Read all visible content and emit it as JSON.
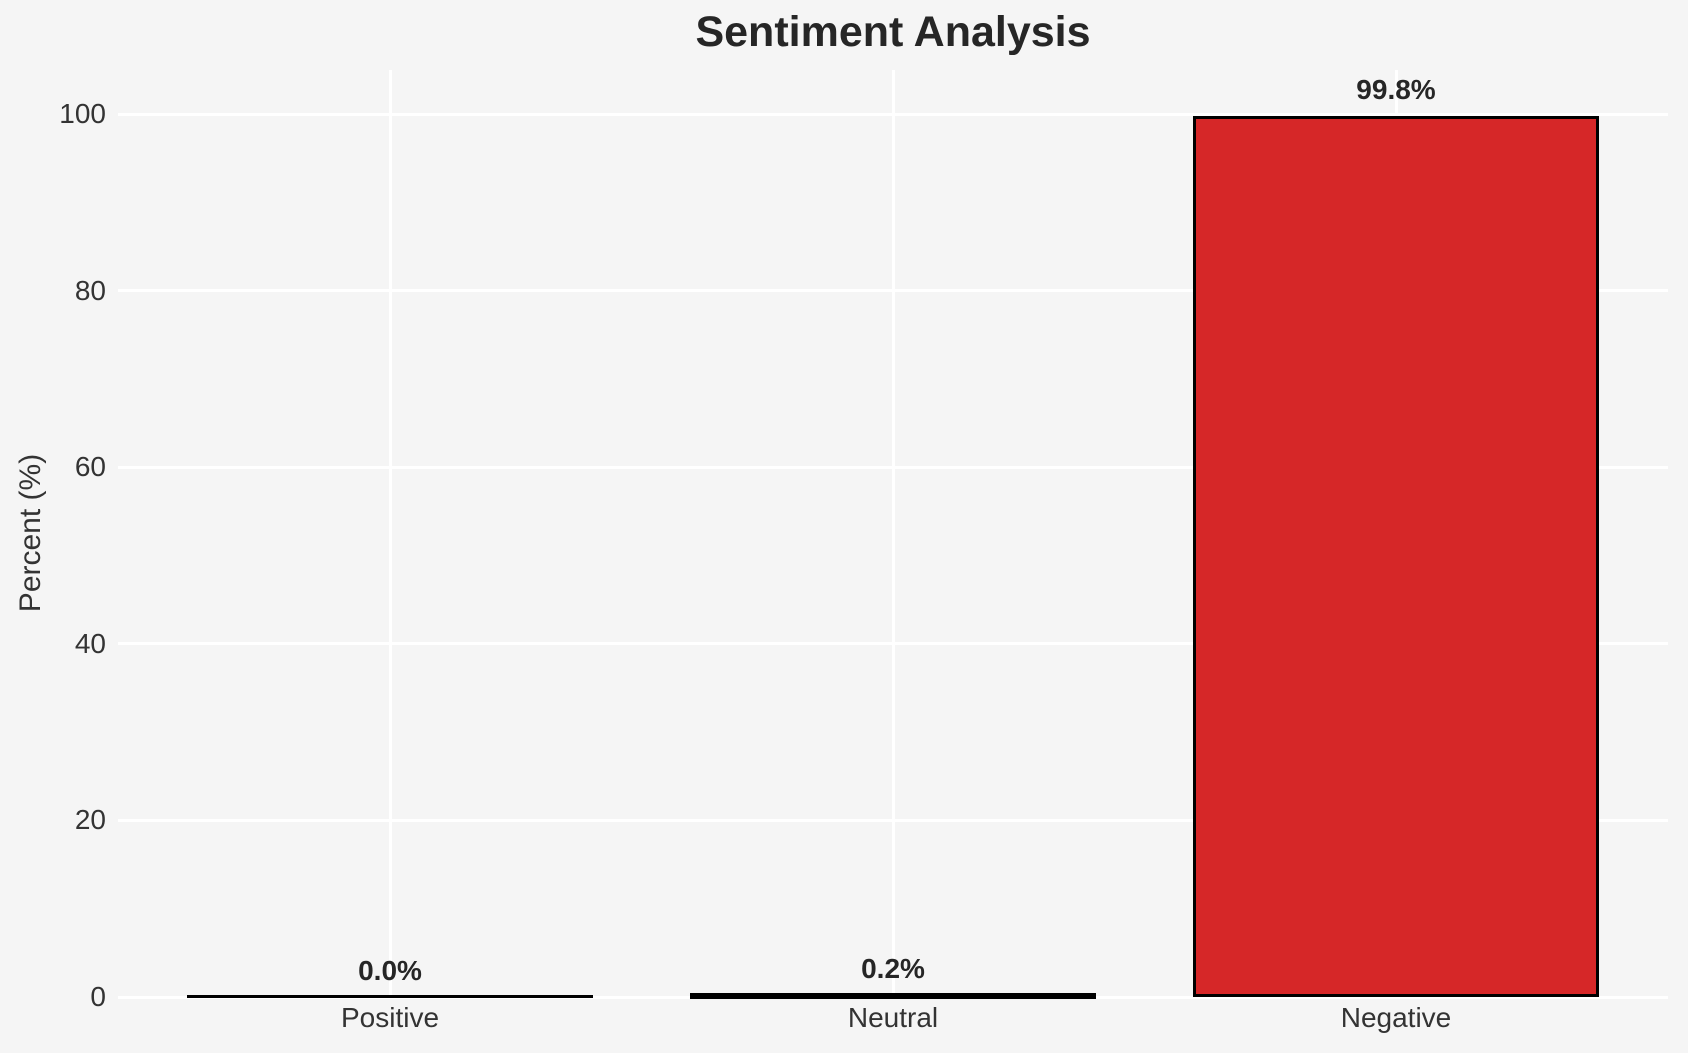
{
  "chart_data": {
    "type": "bar",
    "title": "Sentiment Analysis",
    "xlabel": "",
    "ylabel": "Percent (%)",
    "categories": [
      "Positive",
      "Neutral",
      "Negative"
    ],
    "values": [
      0.0,
      0.2,
      99.8
    ],
    "bar_value_labels": [
      "0.0%",
      "0.2%",
      "99.8%"
    ],
    "bar_fill_colors": [
      null,
      null,
      "#d62728"
    ],
    "yticks": [
      0,
      20,
      40,
      60,
      80,
      100
    ],
    "ylim": [
      0,
      105
    ],
    "legend": "none",
    "grid": "on",
    "colors": {
      "background": "#f5f5f5",
      "gridline": "#ffffff",
      "bar_edge": "#000000",
      "negative_bar_fill": "#d62728",
      "tick_text": "#333333",
      "title_text": "#262626"
    }
  }
}
